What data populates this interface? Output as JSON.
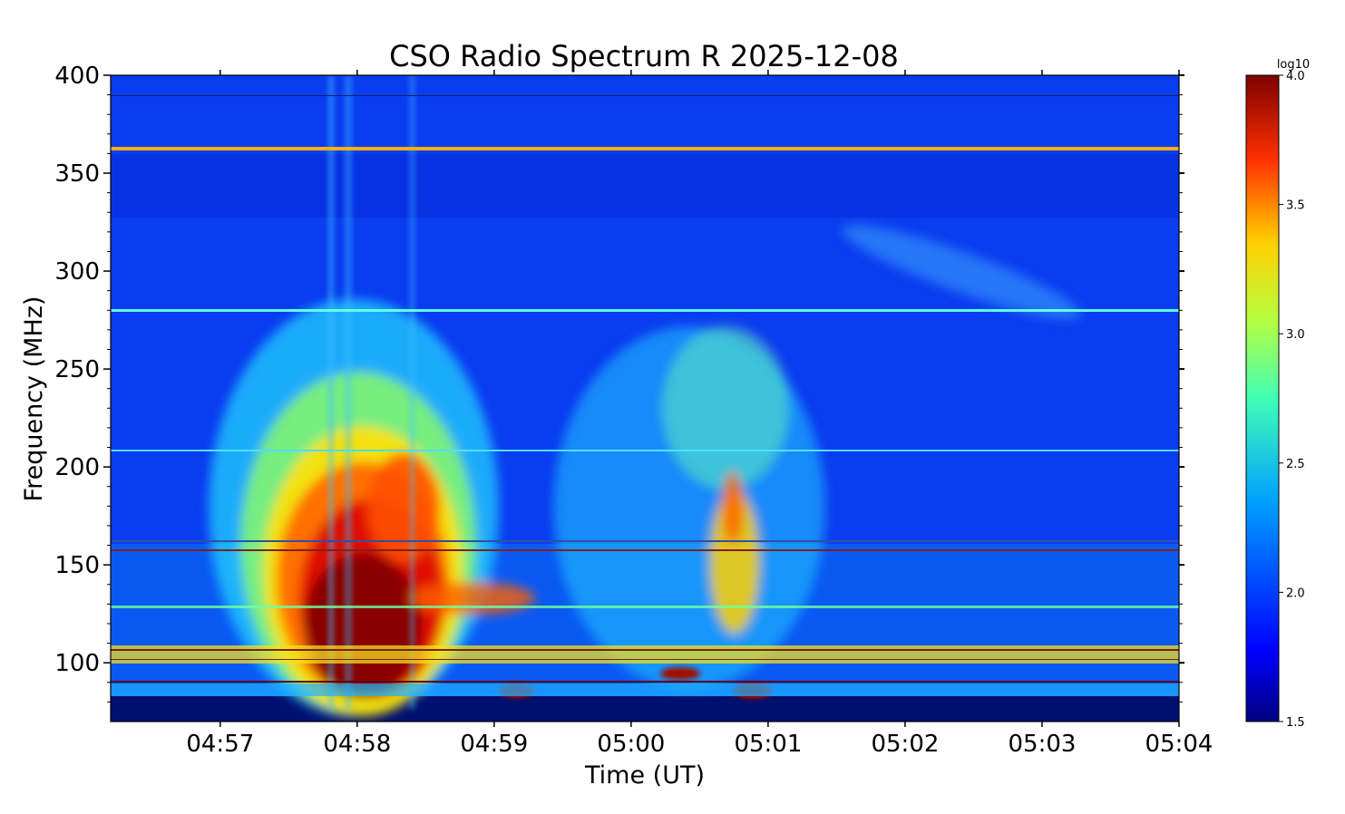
{
  "chart_data": {
    "type": "heatmap",
    "title": "CSO Radio Spectrum R 2025-12-08",
    "xlabel": "Time (UT)",
    "ylabel": "Frequency (MHz)",
    "x_ticks": [
      "04:57",
      "04:58",
      "04:59",
      "05:00",
      "05:01",
      "05:02",
      "05:03",
      "05:04"
    ],
    "x_range": [
      "04:56:12",
      "05:04:00"
    ],
    "y_ticks": [
      400,
      350,
      300,
      250,
      200,
      150,
      100
    ],
    "ylim": [
      70,
      400
    ],
    "colorbar": {
      "unit": "log10",
      "ticks": [
        "4.0",
        "3.5",
        "3.0",
        "2.5",
        "2.0",
        "1.5"
      ],
      "range": [
        1.5,
        4.0
      ],
      "colormap": "jet"
    },
    "features": [
      {
        "name": "type III/IV burst complex",
        "t_start": "04:57:20",
        "t_end": "04:58:35",
        "f_low": 75,
        "f_high": 270,
        "peak_log10": 4.0
      },
      {
        "name": "burst group",
        "t_start": "04:59:15",
        "t_end": "05:01:15",
        "f_low": 75,
        "f_high": 270,
        "peak_log10": 3.4
      },
      {
        "name": "narrowband interference line",
        "freq_mhz": 362,
        "log10": 3.4
      },
      {
        "name": "narrowband interference line",
        "freq_mhz": 280,
        "log10": 2.6
      },
      {
        "name": "narrowband interference line",
        "freq_mhz": 208,
        "log10": 2.5
      },
      {
        "name": "narrowband interference band",
        "freq_mhz": 102,
        "log10": 3.0
      }
    ]
  }
}
